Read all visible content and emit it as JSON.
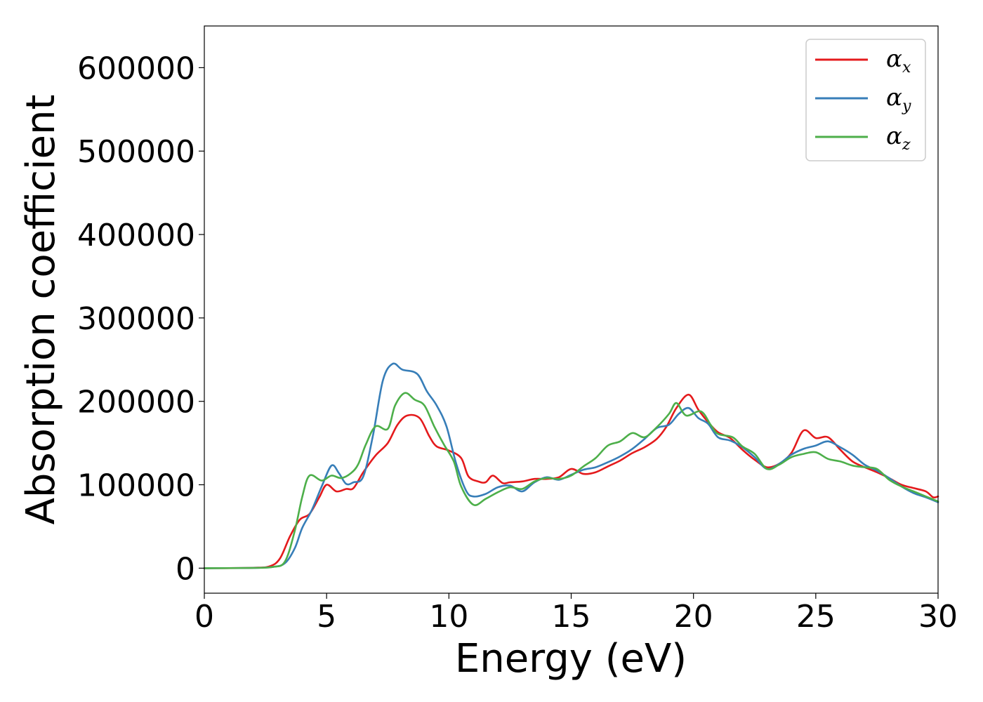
{
  "chart_data": {
    "type": "line",
    "title": "",
    "xlabel": "Energy (eV)",
    "ylabel": "Absorption coefficient",
    "xlim": [
      0,
      30
    ],
    "ylim": [
      -30000,
      650000
    ],
    "xticks": [
      "0",
      "5",
      "10",
      "15",
      "20",
      "25",
      "30"
    ],
    "xtick_values": [
      0,
      5,
      10,
      15,
      20,
      25,
      30
    ],
    "yticks": [
      "0",
      "100000",
      "200000",
      "300000",
      "400000",
      "500000",
      "600000"
    ],
    "ytick_values": [
      0,
      100000,
      200000,
      300000,
      400000,
      500000,
      600000
    ],
    "grid": false,
    "legend_position": "top-right",
    "series": [
      {
        "name": "α",
        "subscript": "x",
        "color": "#e41a1c",
        "points": [
          [
            0,
            0
          ],
          [
            2,
            500
          ],
          [
            2.7,
            2500
          ],
          [
            3.1,
            12000
          ],
          [
            3.5,
            38000
          ],
          [
            3.9,
            58000
          ],
          [
            4.3,
            65000
          ],
          [
            4.7,
            85000
          ],
          [
            5.0,
            100000
          ],
          [
            5.4,
            92000
          ],
          [
            5.8,
            95000
          ],
          [
            6.1,
            96000
          ],
          [
            6.5,
            115000
          ],
          [
            7.0,
            135000
          ],
          [
            7.5,
            150000
          ],
          [
            7.9,
            172000
          ],
          [
            8.3,
            183000
          ],
          [
            8.8,
            180000
          ],
          [
            9.2,
            158000
          ],
          [
            9.5,
            146000
          ],
          [
            10.0,
            141000
          ],
          [
            10.5,
            132000
          ],
          [
            10.8,
            110000
          ],
          [
            11.2,
            104000
          ],
          [
            11.5,
            103000
          ],
          [
            11.8,
            111000
          ],
          [
            12.2,
            102000
          ],
          [
            12.5,
            103000
          ],
          [
            13.0,
            104000
          ],
          [
            13.5,
            107000
          ],
          [
            14.0,
            107000
          ],
          [
            14.5,
            109000
          ],
          [
            15.0,
            119000
          ],
          [
            15.5,
            113000
          ],
          [
            16.0,
            115000
          ],
          [
            16.5,
            122000
          ],
          [
            17.0,
            129000
          ],
          [
            17.5,
            138000
          ],
          [
            18.0,
            145000
          ],
          [
            18.5,
            155000
          ],
          [
            18.9,
            170000
          ],
          [
            19.3,
            192000
          ],
          [
            19.8,
            208000
          ],
          [
            20.2,
            190000
          ],
          [
            20.6,
            175000
          ],
          [
            21.0,
            163000
          ],
          [
            21.5,
            156000
          ],
          [
            22.0,
            142000
          ],
          [
            22.5,
            130000
          ],
          [
            23.0,
            121000
          ],
          [
            23.5,
            125000
          ],
          [
            24.0,
            138000
          ],
          [
            24.5,
            165000
          ],
          [
            25.0,
            156000
          ],
          [
            25.5,
            157000
          ],
          [
            26.0,
            142000
          ],
          [
            26.5,
            128000
          ],
          [
            27.0,
            121000
          ],
          [
            27.5,
            115000
          ],
          [
            28.0,
            108000
          ],
          [
            28.5,
            100000
          ],
          [
            29.0,
            96000
          ],
          [
            29.5,
            92000
          ],
          [
            29.8,
            85000
          ],
          [
            30,
            86000
          ]
        ]
      },
      {
        "name": "α",
        "subscript": "y",
        "color": "#377eb8",
        "points": [
          [
            0,
            0
          ],
          [
            2,
            300
          ],
          [
            2.8,
            1500
          ],
          [
            3.3,
            6000
          ],
          [
            3.7,
            24000
          ],
          [
            4.0,
            48000
          ],
          [
            4.4,
            70000
          ],
          [
            4.8,
            98000
          ],
          [
            5.2,
            123000
          ],
          [
            5.5,
            114000
          ],
          [
            5.8,
            101000
          ],
          [
            6.1,
            103000
          ],
          [
            6.5,
            110000
          ],
          [
            6.9,
            160000
          ],
          [
            7.3,
            225000
          ],
          [
            7.7,
            245000
          ],
          [
            8.1,
            238000
          ],
          [
            8.7,
            233000
          ],
          [
            9.1,
            212000
          ],
          [
            9.5,
            195000
          ],
          [
            9.9,
            170000
          ],
          [
            10.3,
            125000
          ],
          [
            10.7,
            93000
          ],
          [
            11.0,
            86000
          ],
          [
            11.5,
            89000
          ],
          [
            12.0,
            97000
          ],
          [
            12.5,
            99000
          ],
          [
            13.0,
            92000
          ],
          [
            13.5,
            103000
          ],
          [
            14.0,
            109000
          ],
          [
            14.5,
            106000
          ],
          [
            15.0,
            112000
          ],
          [
            15.5,
            118000
          ],
          [
            16.0,
            121000
          ],
          [
            16.5,
            127000
          ],
          [
            17.0,
            134000
          ],
          [
            17.5,
            143000
          ],
          [
            18.0,
            155000
          ],
          [
            18.5,
            168000
          ],
          [
            19.0,
            172000
          ],
          [
            19.4,
            185000
          ],
          [
            19.8,
            192000
          ],
          [
            20.2,
            180000
          ],
          [
            20.6,
            173000
          ],
          [
            21.0,
            157000
          ],
          [
            21.5,
            153000
          ],
          [
            22.0,
            145000
          ],
          [
            22.5,
            133000
          ],
          [
            23.0,
            119000
          ],
          [
            23.5,
            125000
          ],
          [
            24.0,
            136000
          ],
          [
            24.5,
            143000
          ],
          [
            25.0,
            147000
          ],
          [
            25.5,
            152000
          ],
          [
            26.0,
            145000
          ],
          [
            26.5,
            136000
          ],
          [
            27.0,
            124000
          ],
          [
            27.5,
            117000
          ],
          [
            28.0,
            108000
          ],
          [
            28.5,
            98000
          ],
          [
            29.0,
            90000
          ],
          [
            29.5,
            85000
          ],
          [
            30,
            79000
          ]
        ]
      },
      {
        "name": "α",
        "subscript": "z",
        "color": "#4daf4a",
        "points": [
          [
            0,
            0
          ],
          [
            2,
            300
          ],
          [
            2.8,
            1500
          ],
          [
            3.3,
            8000
          ],
          [
            3.7,
            45000
          ],
          [
            4.0,
            85000
          ],
          [
            4.3,
            111000
          ],
          [
            4.8,
            105000
          ],
          [
            5.2,
            111000
          ],
          [
            5.6,
            108000
          ],
          [
            6.0,
            114000
          ],
          [
            6.3,
            125000
          ],
          [
            6.6,
            148000
          ],
          [
            7.0,
            170000
          ],
          [
            7.5,
            167000
          ],
          [
            7.8,
            195000
          ],
          [
            8.2,
            210000
          ],
          [
            8.6,
            202000
          ],
          [
            9.0,
            195000
          ],
          [
            9.4,
            170000
          ],
          [
            9.8,
            148000
          ],
          [
            10.2,
            128000
          ],
          [
            10.5,
            98000
          ],
          [
            11.0,
            76000
          ],
          [
            11.5,
            83000
          ],
          [
            12.0,
            91000
          ],
          [
            12.5,
            97000
          ],
          [
            13.0,
            95000
          ],
          [
            13.5,
            104000
          ],
          [
            14.0,
            108000
          ],
          [
            14.5,
            107000
          ],
          [
            15.0,
            111000
          ],
          [
            15.5,
            122000
          ],
          [
            16.0,
            132000
          ],
          [
            16.5,
            147000
          ],
          [
            17.0,
            152000
          ],
          [
            17.5,
            162000
          ],
          [
            18.0,
            157000
          ],
          [
            18.5,
            169000
          ],
          [
            19.0,
            185000
          ],
          [
            19.3,
            198000
          ],
          [
            19.7,
            183000
          ],
          [
            20.3,
            188000
          ],
          [
            20.7,
            172000
          ],
          [
            21.0,
            161000
          ],
          [
            21.6,
            157000
          ],
          [
            22.0,
            146000
          ],
          [
            22.5,
            137000
          ],
          [
            23.0,
            119000
          ],
          [
            23.5,
            124000
          ],
          [
            24.0,
            133000
          ],
          [
            24.5,
            137000
          ],
          [
            25.0,
            139000
          ],
          [
            25.5,
            131000
          ],
          [
            26.0,
            128000
          ],
          [
            26.5,
            123000
          ],
          [
            27.0,
            121000
          ],
          [
            27.5,
            119000
          ],
          [
            28.0,
            106000
          ],
          [
            28.5,
            98000
          ],
          [
            29.0,
            92000
          ],
          [
            29.5,
            86000
          ],
          [
            30,
            80000
          ]
        ]
      }
    ]
  }
}
